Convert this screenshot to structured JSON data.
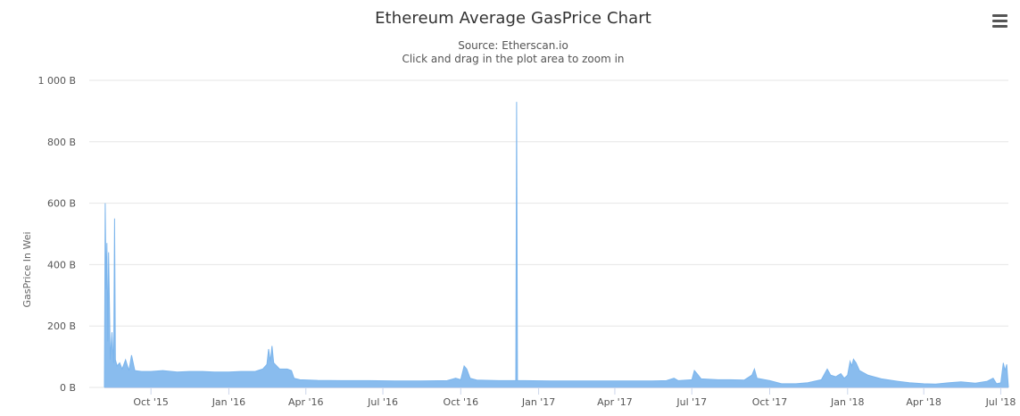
{
  "chart_data": {
    "type": "area",
    "title": "Ethereum Average GasPrice Chart",
    "subtitle": "Source: Etherscan.io",
    "zoom_hint": "Click and drag in the plot area to zoom in",
    "xlabel": "",
    "ylabel": "GasPrice In Wei",
    "x_range": [
      "2015-08-07",
      "2018-07-10"
    ],
    "ylim": [
      0,
      1000
    ],
    "y_unit": "B",
    "y_ticks": [
      {
        "value": 0,
        "label": "0 B"
      },
      {
        "value": 200,
        "label": "200 B"
      },
      {
        "value": 400,
        "label": "400 B"
      },
      {
        "value": 600,
        "label": "600 B"
      },
      {
        "value": 800,
        "label": "800 B"
      },
      {
        "value": 1000,
        "label": "1 000 B"
      }
    ],
    "x_ticks": [
      {
        "date": "2015-10-01",
        "label": "Oct '15"
      },
      {
        "date": "2016-01-01",
        "label": "Jan '16"
      },
      {
        "date": "2016-04-01",
        "label": "Apr '16"
      },
      {
        "date": "2016-07-01",
        "label": "Jul '16"
      },
      {
        "date": "2016-10-01",
        "label": "Oct '16"
      },
      {
        "date": "2017-01-01",
        "label": "Jan '17"
      },
      {
        "date": "2017-04-01",
        "label": "Apr '17"
      },
      {
        "date": "2017-07-01",
        "label": "Jul '17"
      },
      {
        "date": "2017-10-01",
        "label": "Oct '17"
      },
      {
        "date": "2018-01-01",
        "label": "Jan '18"
      },
      {
        "date": "2018-04-01",
        "label": "Apr '18"
      },
      {
        "date": "2018-07-01",
        "label": "Jul '18"
      }
    ],
    "grid": true,
    "legend": "none",
    "color": "#7cb5ec",
    "series": [
      {
        "points": [
          [
            "2015-08-07",
            0
          ],
          [
            "2015-08-08",
            600
          ],
          [
            "2015-08-09",
            320
          ],
          [
            "2015-08-10",
            470
          ],
          [
            "2015-08-11",
            150
          ],
          [
            "2015-08-12",
            440
          ],
          [
            "2015-08-13",
            260
          ],
          [
            "2015-08-14",
            90
          ],
          [
            "2015-08-15",
            140
          ],
          [
            "2015-08-16",
            180
          ],
          [
            "2015-08-17",
            120
          ],
          [
            "2015-08-18",
            80
          ],
          [
            "2015-08-19",
            550
          ],
          [
            "2015-08-20",
            90
          ],
          [
            "2015-08-22",
            70
          ],
          [
            "2015-08-25",
            80
          ],
          [
            "2015-08-28",
            60
          ],
          [
            "2015-09-01",
            90
          ],
          [
            "2015-09-05",
            55
          ],
          [
            "2015-09-08",
            105
          ],
          [
            "2015-09-12",
            55
          ],
          [
            "2015-09-20",
            52
          ],
          [
            "2015-10-01",
            52
          ],
          [
            "2015-10-15",
            55
          ],
          [
            "2015-11-01",
            50
          ],
          [
            "2015-11-15",
            52
          ],
          [
            "2015-12-01",
            52
          ],
          [
            "2015-12-15",
            50
          ],
          [
            "2016-01-01",
            50
          ],
          [
            "2016-01-15",
            52
          ],
          [
            "2016-02-01",
            52
          ],
          [
            "2016-02-10",
            60
          ],
          [
            "2016-02-15",
            75
          ],
          [
            "2016-02-17",
            125
          ],
          [
            "2016-02-19",
            85
          ],
          [
            "2016-02-21",
            135
          ],
          [
            "2016-02-23",
            80
          ],
          [
            "2016-03-01",
            60
          ],
          [
            "2016-03-10",
            60
          ],
          [
            "2016-03-15",
            55
          ],
          [
            "2016-03-18",
            30
          ],
          [
            "2016-03-25",
            25
          ],
          [
            "2016-04-15",
            23
          ],
          [
            "2016-05-15",
            22
          ],
          [
            "2016-06-15",
            22
          ],
          [
            "2016-07-15",
            21
          ],
          [
            "2016-08-15",
            21
          ],
          [
            "2016-09-15",
            22
          ],
          [
            "2016-09-25",
            30
          ],
          [
            "2016-10-01",
            25
          ],
          [
            "2016-10-05",
            70
          ],
          [
            "2016-10-08",
            60
          ],
          [
            "2016-10-12",
            30
          ],
          [
            "2016-10-20",
            24
          ],
          [
            "2016-11-15",
            22
          ],
          [
            "2016-12-05",
            22
          ],
          [
            "2016-12-06",
            930
          ],
          [
            "2016-12-07",
            22
          ],
          [
            "2016-12-15",
            22
          ],
          [
            "2017-01-15",
            21
          ],
          [
            "2017-02-15",
            21
          ],
          [
            "2017-03-15",
            21
          ],
          [
            "2017-04-15",
            21
          ],
          [
            "2017-05-15",
            21
          ],
          [
            "2017-06-01",
            22
          ],
          [
            "2017-06-10",
            30
          ],
          [
            "2017-06-15",
            22
          ],
          [
            "2017-07-01",
            25
          ],
          [
            "2017-07-04",
            55
          ],
          [
            "2017-07-07",
            45
          ],
          [
            "2017-07-12",
            28
          ],
          [
            "2017-08-01",
            25
          ],
          [
            "2017-08-15",
            25
          ],
          [
            "2017-09-01",
            24
          ],
          [
            "2017-09-10",
            40
          ],
          [
            "2017-09-13",
            60
          ],
          [
            "2017-09-16",
            30
          ],
          [
            "2017-10-01",
            22
          ],
          [
            "2017-10-15",
            12
          ],
          [
            "2017-11-01",
            12
          ],
          [
            "2017-11-15",
            15
          ],
          [
            "2017-12-01",
            25
          ],
          [
            "2017-12-08",
            60
          ],
          [
            "2017-12-12",
            40
          ],
          [
            "2017-12-18",
            35
          ],
          [
            "2017-12-24",
            45
          ],
          [
            "2017-12-28",
            30
          ],
          [
            "2018-01-01",
            40
          ],
          [
            "2018-01-04",
            85
          ],
          [
            "2018-01-06",
            70
          ],
          [
            "2018-01-08",
            92
          ],
          [
            "2018-01-11",
            80
          ],
          [
            "2018-01-15",
            55
          ],
          [
            "2018-01-25",
            40
          ],
          [
            "2018-02-10",
            28
          ],
          [
            "2018-03-01",
            20
          ],
          [
            "2018-03-15",
            15
          ],
          [
            "2018-04-01",
            12
          ],
          [
            "2018-04-15",
            11
          ],
          [
            "2018-05-01",
            15
          ],
          [
            "2018-05-15",
            18
          ],
          [
            "2018-06-01",
            14
          ],
          [
            "2018-06-15",
            20
          ],
          [
            "2018-06-22",
            30
          ],
          [
            "2018-06-26",
            12
          ],
          [
            "2018-07-01",
            15
          ],
          [
            "2018-07-04",
            80
          ],
          [
            "2018-07-06",
            55
          ],
          [
            "2018-07-08",
            75
          ],
          [
            "2018-07-10",
            0
          ]
        ]
      }
    ]
  }
}
